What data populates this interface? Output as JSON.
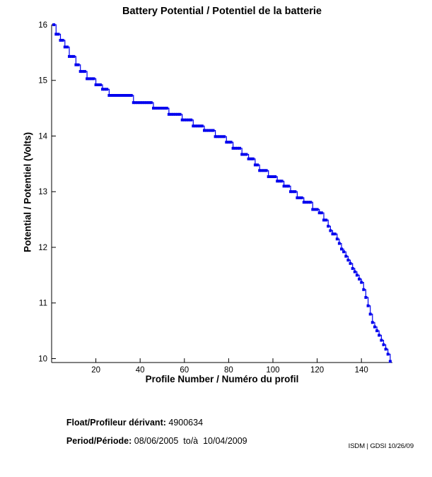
{
  "title": "Battery Potential / Potentiel de la batterie",
  "chart_data": {
    "type": "line",
    "title": "Battery Potential / Potentiel de la batterie",
    "xlabel": "Profile Number / Numéro du profil",
    "ylabel": "Potential / Potentiel (Volts)",
    "xlim": [
      0,
      154
    ],
    "ylim": [
      9.93,
      16
    ],
    "xticks": [
      20,
      40,
      60,
      80,
      100,
      120,
      140
    ],
    "yticks": [
      10,
      11,
      12,
      13,
      14,
      15,
      16
    ],
    "grid": false,
    "legend": "none",
    "line_color": "#0000EE",
    "marker": "filled-square",
    "step_mode": "step-after",
    "points_format": [
      "profile_number",
      "volts"
    ],
    "points": [
      [
        1,
        16.0
      ],
      [
        2,
        15.83
      ],
      [
        4,
        15.72
      ],
      [
        6,
        15.6
      ],
      [
        8,
        15.43
      ],
      [
        11,
        15.28
      ],
      [
        13,
        15.16
      ],
      [
        16,
        15.03
      ],
      [
        20,
        14.92
      ],
      [
        23,
        14.84
      ],
      [
        26,
        14.73
      ],
      [
        37,
        14.6
      ],
      [
        46,
        14.5
      ],
      [
        53,
        14.39
      ],
      [
        59,
        14.29
      ],
      [
        64,
        14.18
      ],
      [
        69,
        14.1
      ],
      [
        74,
        13.99
      ],
      [
        79,
        13.89
      ],
      [
        82,
        13.78
      ],
      [
        86,
        13.67
      ],
      [
        89,
        13.59
      ],
      [
        92,
        13.48
      ],
      [
        94,
        13.38
      ],
      [
        98,
        13.27
      ],
      [
        102,
        13.19
      ],
      [
        105,
        13.1
      ],
      [
        108,
        13.0
      ],
      [
        111,
        12.89
      ],
      [
        114,
        12.81
      ],
      [
        118,
        12.68
      ],
      [
        121,
        12.62
      ],
      [
        123,
        12.49
      ],
      [
        125,
        12.38
      ],
      [
        126,
        12.3
      ],
      [
        127,
        12.24
      ],
      [
        129,
        12.15
      ],
      [
        130,
        12.07
      ],
      [
        131,
        11.97
      ],
      [
        132,
        11.92
      ],
      [
        133,
        11.84
      ],
      [
        134,
        11.77
      ],
      [
        135,
        11.71
      ],
      [
        136,
        11.62
      ],
      [
        137,
        11.56
      ],
      [
        138,
        11.5
      ],
      [
        139,
        11.43
      ],
      [
        140,
        11.37
      ],
      [
        141,
        11.24
      ],
      [
        142,
        11.1
      ],
      [
        143,
        10.95
      ],
      [
        144,
        10.8
      ],
      [
        145,
        10.65
      ],
      [
        146,
        10.57
      ],
      [
        147,
        10.5
      ],
      [
        148,
        10.42
      ],
      [
        149,
        10.33
      ],
      [
        150,
        10.25
      ],
      [
        151,
        10.17
      ],
      [
        152,
        10.08
      ],
      [
        153,
        9.95
      ]
    ]
  },
  "footer": {
    "float_label": "Float/Profileur dérivant:",
    "float_value": " 4900634",
    "period_label": "Period/Période:",
    "period_value": " 08/06/2005  to/à  10/04/2009",
    "stamp": "ISDM | GDSI 10/26/09"
  }
}
